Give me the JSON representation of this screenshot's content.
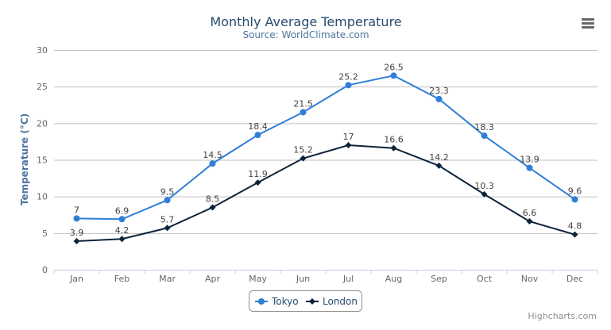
{
  "chart_data": {
    "type": "line",
    "title": "Monthly Average Temperature",
    "subtitle": "Source: WorldClimate.com",
    "xlabel": "",
    "ylabel": "Temperature (°C)",
    "ylim": [
      0,
      30
    ],
    "yticks": [
      0,
      5,
      10,
      15,
      20,
      25,
      30
    ],
    "grid": true,
    "legend": "bottom-center",
    "categories": [
      "Jan",
      "Feb",
      "Mar",
      "Apr",
      "May",
      "Jun",
      "Jul",
      "Aug",
      "Sep",
      "Oct",
      "Nov",
      "Dec"
    ],
    "series": [
      {
        "name": "Tokyo",
        "color": "#2f7ed8",
        "marker": "circle",
        "values": [
          7.0,
          6.9,
          9.5,
          14.5,
          18.4,
          21.5,
          25.2,
          26.5,
          23.3,
          18.3,
          13.9,
          9.6
        ]
      },
      {
        "name": "London",
        "color": "#0d233a",
        "marker": "diamond",
        "values": [
          3.9,
          4.2,
          5.7,
          8.5,
          11.9,
          15.2,
          17.0,
          16.6,
          14.2,
          10.3,
          6.6,
          4.8
        ]
      }
    ]
  },
  "menu_icon": "hamburger-menu-icon",
  "credit": "Highcharts.com"
}
